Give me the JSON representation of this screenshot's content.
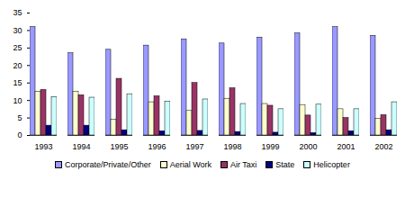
{
  "chart_data": {
    "type": "bar",
    "categories": [
      "1993",
      "1994",
      "1995",
      "1996",
      "1997",
      "1998",
      "1999",
      "2000",
      "2001",
      "2002"
    ],
    "series": [
      {
        "name": "Corporate/Private/Other",
        "color": "#9999ff",
        "values": [
          31,
          23.5,
          24.5,
          25.7,
          27.5,
          26.3,
          28,
          29.2,
          31,
          28.5
        ]
      },
      {
        "name": "Aerial Work",
        "color": "#ffffcc",
        "values": [
          12.5,
          12.5,
          4.5,
          9.5,
          7,
          10.5,
          9,
          8.7,
          7.5,
          4.7
        ]
      },
      {
        "name": "Air Taxi",
        "color": "#993366",
        "values": [
          13,
          11.5,
          16.2,
          11.2,
          15,
          13.5,
          8.5,
          5.7,
          5,
          5.8
        ]
      },
      {
        "name": "State",
        "color": "#000080",
        "values": [
          2.8,
          2.8,
          1.5,
          1.2,
          1.3,
          1,
          0.8,
          0.7,
          1.2,
          1.5
        ]
      },
      {
        "name": "Helicopter",
        "color": "#ccffff",
        "values": [
          11,
          10.8,
          11.8,
          9.7,
          10.3,
          9,
          7.5,
          8.8,
          7.5,
          9.5
        ]
      }
    ],
    "ylim": [
      0,
      35
    ],
    "yticks": [
      0,
      5,
      10,
      15,
      20,
      25,
      30,
      35
    ],
    "grid": false,
    "legend": "bottom"
  }
}
